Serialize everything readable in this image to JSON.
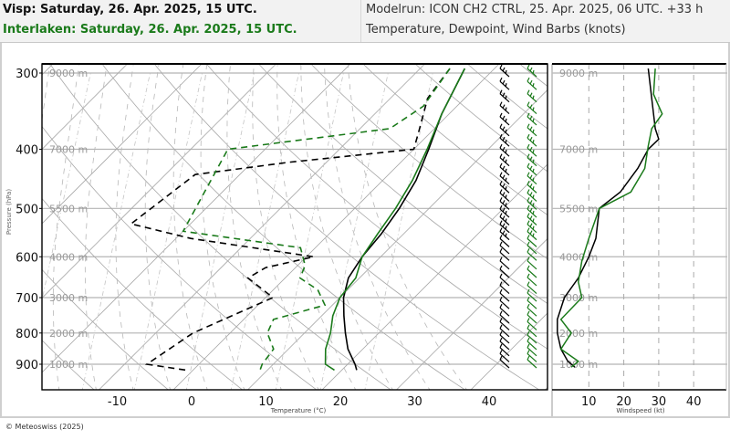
{
  "header": {
    "title_primary": "Visp: Saturday, 26. Apr. 2025, 15 UTC.",
    "title_secondary": "Interlaken: Saturday, 26. Apr. 2025, 15 UTC.",
    "modelrun": "Modelrun: ICON CH2 CTRL, 25. Apr. 2025, 06 UTC. +33 h",
    "description": "Temperature, Dewpoint, Wind Barbs (knots)"
  },
  "colors": {
    "visp": "#000000",
    "interlaken": "#1a7a1a",
    "grid": "#a0a0a0",
    "header_bg": "#f2f2f2"
  },
  "footer": {
    "copyright": "© Meteoswiss (2025)"
  },
  "chart_data": [
    {
      "type": "line",
      "title": "Skew-T log-P diagram",
      "xlabel": "Temperature (°C)",
      "ylabel": "Pressure (hPa)",
      "x_ticks": [
        "-10",
        "0",
        "10",
        "20",
        "30",
        "40"
      ],
      "y_ticks": [
        "300",
        "400",
        "500",
        "600",
        "700",
        "800",
        "900"
      ],
      "height_labels": [
        "9000 m",
        "7000 m",
        "5500 m",
        "4000 m",
        "3000 m",
        "2000 m",
        "1000 m"
      ],
      "xlim": [
        -20,
        47
      ],
      "ylim": [
        960,
        295
      ],
      "grid": true,
      "series": [
        {
          "name": "Visp temperature",
          "color": "#000000",
          "style": "solid",
          "pressure": [
            295,
            350,
            400,
            450,
            500,
            550,
            600,
            650,
            700,
            750,
            800,
            850,
            900,
            920
          ],
          "temperature": [
            -4,
            -1,
            2,
            4.5,
            6,
            7,
            7.5,
            8.5,
            10.5,
            13,
            15.5,
            18,
            21,
            22
          ]
        },
        {
          "name": "Interlaken temperature",
          "color": "#1a7a1a",
          "style": "solid",
          "pressure": [
            295,
            350,
            400,
            450,
            500,
            550,
            600,
            650,
            700,
            750,
            800,
            850,
            900,
            920
          ],
          "temperature": [
            -4,
            -1,
            1.8,
            4,
            5.5,
            6.5,
            7.5,
            9.5,
            10,
            11.5,
            13.5,
            15,
            17,
            19
          ]
        },
        {
          "name": "Visp dewpoint",
          "color": "#000000",
          "style": "dash",
          "pressure": [
            295,
            330,
            370,
            400,
            420,
            440,
            530,
            560,
            600,
            625,
            650,
            700,
            800,
            900,
            920
          ],
          "temperature": [
            -6,
            -5,
            -2,
            0,
            -15,
            -26,
            -28,
            -18,
            1,
            -4,
            -5,
            1,
            -5,
            -7,
            -1
          ]
        },
        {
          "name": "Interlaken dewpoint",
          "color": "#1a7a1a",
          "style": "dash",
          "pressure": [
            295,
            340,
            370,
            400,
            545,
            580,
            620,
            650,
            680,
            720,
            760,
            800,
            850,
            900,
            920
          ],
          "temperature": [
            -6,
            -4.5,
            -6,
            -25,
            -20,
            -2,
            1,
            2,
            6,
            9,
            4,
            5,
            8,
            8.5,
            9
          ]
        }
      ]
    },
    {
      "type": "line",
      "title": "Wind speed profile",
      "xlabel": "Windspeed (kt)",
      "ylabel": "",
      "x_ticks": [
        "10",
        "20",
        "30",
        "40"
      ],
      "height_labels": [
        "9000 m",
        "7000 m",
        "5500 m",
        "4000 m",
        "3000 m",
        "2000 m",
        "1000 m"
      ],
      "xlim": [
        0,
        50
      ],
      "ylim": [
        960,
        295
      ],
      "grid": true,
      "series": [
        {
          "name": "Visp wind speed",
          "color": "#000000",
          "pressure": [
            295,
            330,
            370,
            385,
            400,
            430,
            470,
            500,
            560,
            600,
            650,
            700,
            760,
            800,
            850,
            890,
            910
          ],
          "speed": [
            27,
            28,
            29,
            30,
            27,
            24,
            19,
            13,
            12,
            10,
            7,
            3,
            1,
            1,
            2,
            4,
            6
          ]
        },
        {
          "name": "Interlaken wind speed",
          "color": "#1a7a1a",
          "pressure": [
            295,
            325,
            350,
            370,
            395,
            430,
            470,
            500,
            560,
            610,
            660,
            700,
            760,
            800,
            850,
            890,
            910
          ],
          "speed": [
            29,
            28.5,
            31,
            28,
            27,
            26,
            22,
            13,
            10,
            8,
            7,
            8,
            2,
            5,
            2,
            7,
            5
          ]
        }
      ]
    }
  ],
  "wind_barbs": {
    "visp_column_x": 550,
    "interlaken_column_x": 580
  }
}
